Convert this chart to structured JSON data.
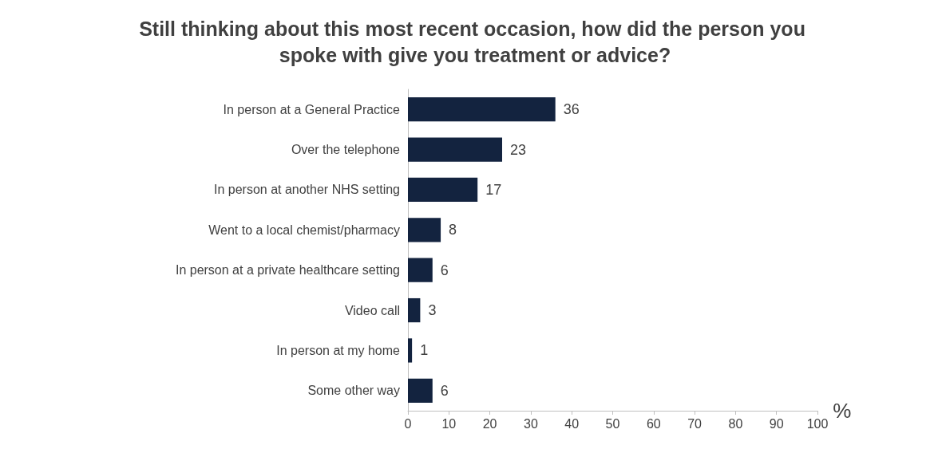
{
  "chart_data": {
    "type": "bar",
    "orientation": "horizontal",
    "title": "Still thinking about this most recent occasion, how did the person you spoke with give you treatment or advice?",
    "categories": [
      "In person at a General Practice",
      "Over the telephone",
      "In person at another NHS setting",
      "Went to a local chemist/pharmacy",
      "In person at a private healthcare setting",
      "Video call",
      "In person at my home",
      "Some other way"
    ],
    "values": [
      36,
      23,
      17,
      8,
      6,
      3,
      1,
      6
    ],
    "color": "#13233f",
    "data_labels": true,
    "xlim": [
      0,
      100
    ],
    "xticks": [
      0,
      10,
      20,
      30,
      40,
      50,
      60,
      70,
      80,
      90,
      100
    ],
    "xlabel": "%",
    "grid": false
  }
}
